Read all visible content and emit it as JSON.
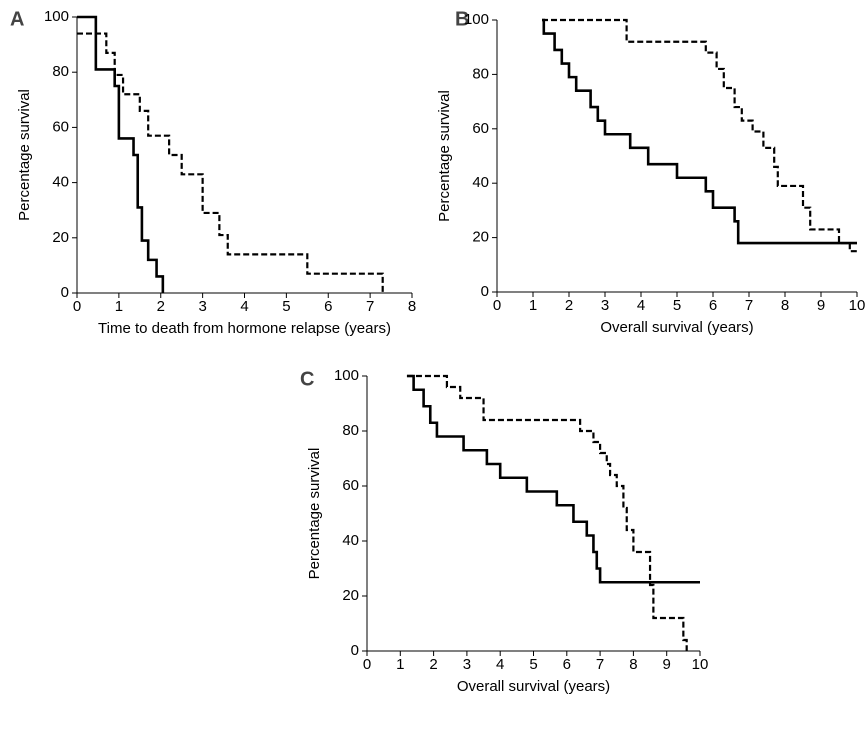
{
  "chart_data": [
    {
      "type": "step",
      "panel_label": "A",
      "ylabel": "Percentage survival",
      "xlabel": "Time to death from hormone relapse (years)",
      "xlim": [
        0,
        8
      ],
      "xticks": [
        0,
        1,
        2,
        3,
        4,
        5,
        6,
        7,
        8
      ],
      "ylim": [
        0,
        100
      ],
      "yticks": [
        0,
        20,
        40,
        60,
        80,
        100
      ],
      "series": [
        {
          "color": "#000000",
          "style": "solid",
          "x": [
            0,
            0.45,
            0.9,
            1.0,
            1.35,
            1.45,
            1.55,
            1.7,
            1.9,
            2.05
          ],
          "values": [
            100,
            81,
            75,
            56,
            50,
            31,
            19,
            12,
            6,
            0
          ]
        },
        {
          "color": "#000000",
          "style": "dashed",
          "x": [
            0,
            0.7,
            0.9,
            1.1,
            1.5,
            1.7,
            2.2,
            2.5,
            3.0,
            3.4,
            3.6,
            5.5,
            7.3
          ],
          "values": [
            94,
            87,
            79,
            72,
            66,
            57,
            50,
            43,
            29,
            21,
            14,
            7,
            0
          ]
        }
      ]
    },
    {
      "type": "step",
      "panel_label": "B",
      "ylabel": "Percentage survival",
      "xlabel": "Overall survival (years)",
      "xlim": [
        0,
        10
      ],
      "xticks": [
        0,
        1,
        2,
        3,
        4,
        5,
        6,
        7,
        8,
        9,
        10
      ],
      "ylim": [
        0,
        100
      ],
      "yticks": [
        0,
        20,
        40,
        60,
        80,
        100
      ],
      "series": [
        {
          "color": "#000000",
          "style": "solid",
          "x": [
            1.25,
            1.3,
            1.6,
            1.8,
            2.0,
            2.2,
            2.6,
            2.8,
            3.0,
            3.7,
            4.2,
            5.0,
            5.8,
            6.0,
            6.6,
            6.7,
            10
          ],
          "values": [
            100,
            95,
            89,
            84,
            79,
            74,
            68,
            63,
            58,
            53,
            47,
            42,
            37,
            31,
            26,
            18,
            18
          ]
        },
        {
          "color": "#000000",
          "style": "dashed",
          "x": [
            1.25,
            3.6,
            5.8,
            6.1,
            6.3,
            6.6,
            6.8,
            7.1,
            7.4,
            7.7,
            7.8,
            8.5,
            8.7,
            9.5,
            9.8,
            10
          ],
          "values": [
            100,
            92,
            88,
            82,
            75,
            68,
            63,
            59,
            53,
            46,
            39,
            31,
            23,
            18,
            15,
            15
          ]
        }
      ]
    },
    {
      "type": "step",
      "panel_label": "C",
      "ylabel": "Percentage survival",
      "xlabel": "Overall survival (years)",
      "xlim": [
        0,
        10
      ],
      "xticks": [
        0,
        1,
        2,
        3,
        4,
        5,
        6,
        7,
        8,
        9,
        10
      ],
      "ylim": [
        0,
        100
      ],
      "yticks": [
        0,
        20,
        40,
        60,
        80,
        100
      ],
      "series": [
        {
          "color": "#000000",
          "style": "solid",
          "x": [
            1.2,
            1.4,
            1.7,
            1.9,
            2.1,
            2.9,
            3.6,
            4.0,
            4.8,
            5.7,
            6.2,
            6.6,
            6.8,
            6.9,
            7.0,
            10
          ],
          "values": [
            100,
            95,
            89,
            83,
            78,
            73,
            68,
            63,
            58,
            53,
            47,
            42,
            36,
            30,
            25,
            25
          ]
        },
        {
          "color": "#000000",
          "style": "dashed",
          "x": [
            1.2,
            2.4,
            2.8,
            3.5,
            6.4,
            6.8,
            7.0,
            7.2,
            7.3,
            7.5,
            7.7,
            7.8,
            8.0,
            8.5,
            8.6,
            9.5,
            9.6
          ],
          "values": [
            100,
            96,
            92,
            84,
            80,
            76,
            72,
            68,
            64,
            60,
            52,
            44,
            36,
            24,
            12,
            4,
            0
          ]
        }
      ]
    }
  ]
}
